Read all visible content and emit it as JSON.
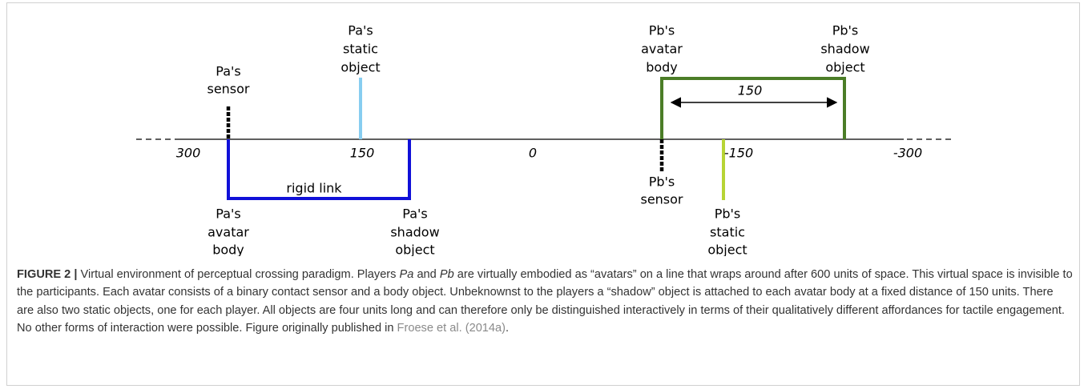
{
  "diagram": {
    "axis_labels": [
      "300",
      "150",
      "0",
      "-150",
      "-300"
    ],
    "distance_label": "150",
    "link_label": "rigid link",
    "labels": [
      [
        "Pa's",
        "sensor"
      ],
      [
        "Pa's",
        "static",
        "object"
      ],
      [
        "Pa's",
        "avatar",
        "body"
      ],
      [
        "Pa's",
        "shadow",
        "object"
      ],
      [
        "Pb's",
        "avatar",
        "body"
      ],
      [
        "Pb's",
        "shadow",
        "object"
      ],
      [
        "Pb's",
        "sensor"
      ],
      [
        "Pb's",
        "static",
        "object"
      ]
    ]
  },
  "caption": {
    "label": "FIGURE 2 |",
    "parts": [
      " Virtual environment of perceptual crossing paradigm. Players ",
      "Pa",
      " and ",
      "Pb",
      " are virtually embodied as “avatars” on a line that wraps around after 600 units of space. This virtual space is invisible to the participants. Each avatar consists of a binary contact sensor and a body object. Unbeknownst to the players a “shadow” object is attached to each avatar body at a fixed distance of 150 units. There are also two static objects, one for each player. All objects are four units long and can therefore only be distinguished interactively in terms of their qualitatively different affordances for tactile engagement. No other forms of interaction were possible. Figure originally published in ",
      "Froese et al. (2014a)",
      "."
    ]
  }
}
